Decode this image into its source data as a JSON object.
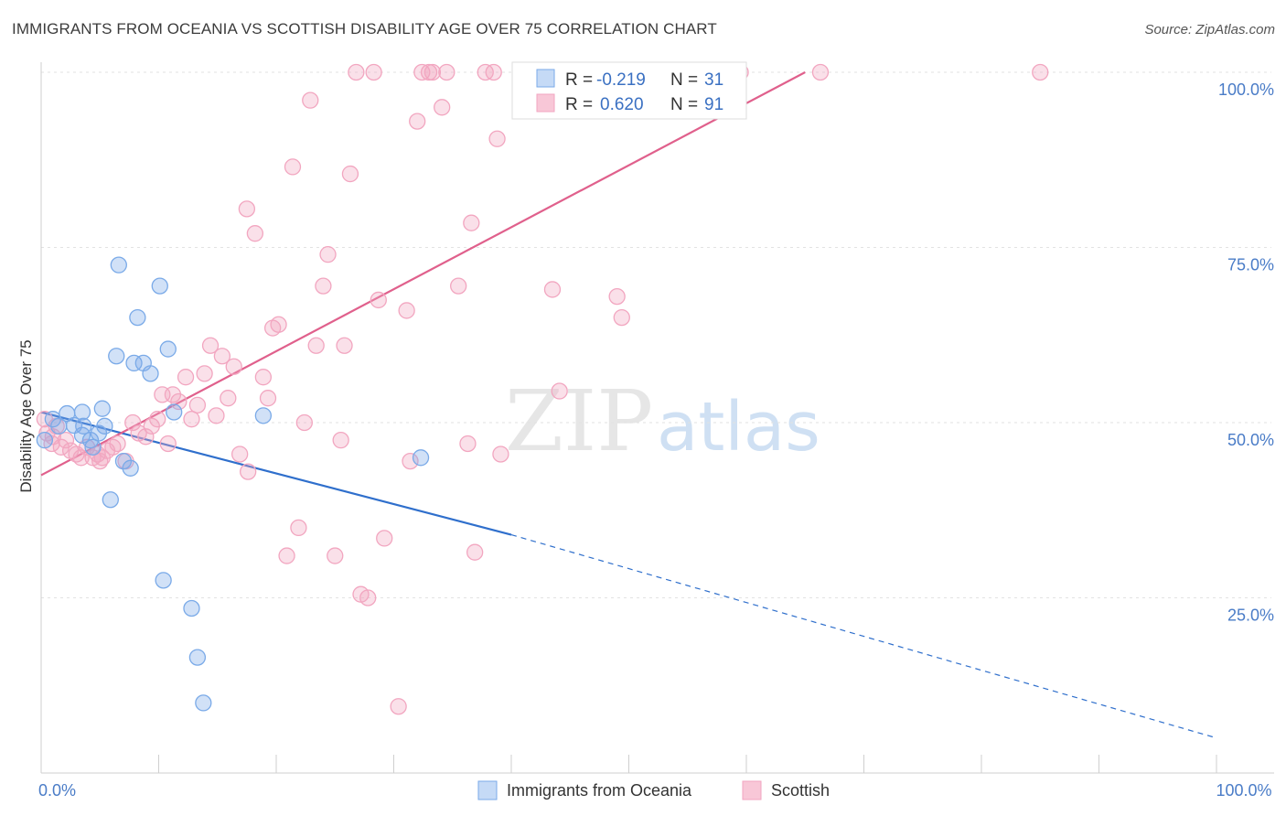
{
  "title": "IMMIGRANTS FROM OCEANIA VS SCOTTISH DISABILITY AGE OVER 75 CORRELATION CHART",
  "source": "Source: ZipAtlas.com",
  "watermark": {
    "zip": "ZIP",
    "atlas": "atlas"
  },
  "chart_data": {
    "type": "scatter",
    "ylabel": "Disability Age Over 75",
    "xlim": [
      0,
      100
    ],
    "ylim": [
      0,
      100
    ],
    "x_ticks_labeled": [
      {
        "value": 0,
        "label": "0.0%"
      },
      {
        "value": 100,
        "label": "100.0%"
      }
    ],
    "y_ticks": [
      {
        "value": 25,
        "label": "25.0%"
      },
      {
        "value": 50,
        "label": "50.0%"
      },
      {
        "value": 75,
        "label": "75.0%"
      },
      {
        "value": 100,
        "label": "100.0%"
      }
    ],
    "grid": true,
    "legend_position": "top-center",
    "series": [
      {
        "name": "Immigrants from Oceania",
        "color": "#7aaae8",
        "line_color": "#2f6fcc",
        "R": "-0.219",
        "N": "31",
        "trend": {
          "x0": 0,
          "y0": 51.5,
          "x1": 40,
          "y1": 34,
          "dash_to_x": 100,
          "dash_to_y": 5
        },
        "points": [
          [
            0.3,
            47.5
          ],
          [
            1.0,
            50.5
          ],
          [
            1.5,
            49.5
          ],
          [
            2.2,
            51.3
          ],
          [
            2.8,
            49.6
          ],
          [
            3.5,
            48.2
          ],
          [
            3.6,
            49.5
          ],
          [
            3.5,
            51.5
          ],
          [
            4.2,
            47.5
          ],
          [
            4.4,
            46.5
          ],
          [
            4.9,
            48.5
          ],
          [
            5.2,
            52.0
          ],
          [
            5.4,
            49.5
          ],
          [
            5.9,
            39.0
          ],
          [
            6.6,
            72.5
          ],
          [
            6.4,
            59.5
          ],
          [
            7.0,
            44.5
          ],
          [
            7.6,
            43.5
          ],
          [
            7.9,
            58.5
          ],
          [
            8.2,
            65.0
          ],
          [
            8.7,
            58.5
          ],
          [
            9.3,
            57.0
          ],
          [
            10.1,
            69.5
          ],
          [
            10.4,
            27.5
          ],
          [
            10.8,
            60.5
          ],
          [
            11.3,
            51.5
          ],
          [
            12.8,
            23.5
          ],
          [
            13.3,
            16.5
          ],
          [
            13.8,
            10.0
          ],
          [
            18.9,
            51.0
          ],
          [
            32.3,
            45.0
          ]
        ]
      },
      {
        "name": "Scottish",
        "color": "#f2a6c0",
        "line_color": "#e0608c",
        "R": "0.620",
        "N": "91",
        "trend": {
          "x0": 0,
          "y0": 42.5,
          "x1": 65,
          "y1": 100
        },
        "points": [
          [
            0.3,
            50.5
          ],
          [
            0.5,
            48.5
          ],
          [
            0.9,
            47.0
          ],
          [
            1.3,
            49.5
          ],
          [
            1.7,
            46.5
          ],
          [
            2.1,
            47.5
          ],
          [
            2.5,
            46.0
          ],
          [
            3.0,
            45.5
          ],
          [
            3.4,
            45.0
          ],
          [
            3.9,
            46.5
          ],
          [
            4.4,
            45.0
          ],
          [
            4.8,
            45.5
          ],
          [
            5.2,
            45.0
          ],
          [
            5.6,
            46.0
          ],
          [
            6.1,
            46.5
          ],
          [
            6.5,
            47.0
          ],
          [
            7.2,
            44.5
          ],
          [
            7.8,
            50.0
          ],
          [
            8.3,
            48.5
          ],
          [
            8.9,
            48.0
          ],
          [
            9.4,
            49.5
          ],
          [
            9.9,
            50.5
          ],
          [
            10.3,
            54.0
          ],
          [
            10.8,
            47.0
          ],
          [
            11.2,
            54.0
          ],
          [
            11.7,
            53.0
          ],
          [
            12.3,
            56.5
          ],
          [
            12.8,
            50.5
          ],
          [
            13.3,
            52.5
          ],
          [
            13.9,
            57.0
          ],
          [
            14.4,
            61.0
          ],
          [
            14.9,
            51.0
          ],
          [
            15.4,
            59.5
          ],
          [
            15.9,
            53.5
          ],
          [
            16.4,
            58.0
          ],
          [
            16.9,
            45.5
          ],
          [
            17.5,
            80.5
          ],
          [
            17.6,
            43.0
          ],
          [
            18.2,
            77.0
          ],
          [
            18.9,
            56.5
          ],
          [
            19.3,
            53.5
          ],
          [
            19.7,
            63.5
          ],
          [
            20.2,
            64.0
          ],
          [
            20.9,
            31.0
          ],
          [
            21.4,
            86.5
          ],
          [
            21.9,
            35.0
          ],
          [
            22.4,
            50.0
          ],
          [
            22.9,
            96.0
          ],
          [
            23.4,
            61.0
          ],
          [
            24.0,
            69.5
          ],
          [
            24.4,
            74.0
          ],
          [
            25.0,
            31.0
          ],
          [
            25.5,
            47.5
          ],
          [
            25.8,
            61.0
          ],
          [
            26.3,
            85.5
          ],
          [
            26.8,
            100
          ],
          [
            27.2,
            25.5
          ],
          [
            27.8,
            25.0
          ],
          [
            28.3,
            100
          ],
          [
            28.7,
            67.5
          ],
          [
            29.2,
            33.5
          ],
          [
            30.4,
            9.5
          ],
          [
            31.1,
            66.0
          ],
          [
            31.4,
            44.5
          ],
          [
            32.0,
            93.0
          ],
          [
            32.4,
            100
          ],
          [
            33.0,
            100
          ],
          [
            33.3,
            100
          ],
          [
            34.1,
            95.0
          ],
          [
            34.5,
            100
          ],
          [
            35.5,
            69.5
          ],
          [
            36.3,
            47.0
          ],
          [
            36.6,
            78.5
          ],
          [
            36.9,
            31.5
          ],
          [
            37.8,
            100
          ],
          [
            38.5,
            100
          ],
          [
            38.8,
            90.5
          ],
          [
            39.1,
            45.5
          ],
          [
            41.9,
            100
          ],
          [
            43.5,
            69.0
          ],
          [
            44.1,
            54.5
          ],
          [
            44.8,
            100
          ],
          [
            48.2,
            100
          ],
          [
            49.0,
            68.0
          ],
          [
            49.4,
            65.0
          ],
          [
            53.1,
            100
          ],
          [
            59.5,
            100
          ],
          [
            66.3,
            100
          ],
          [
            85.0,
            100
          ],
          [
            1.0,
            48.0
          ],
          [
            5.0,
            44.5
          ]
        ]
      }
    ]
  }
}
